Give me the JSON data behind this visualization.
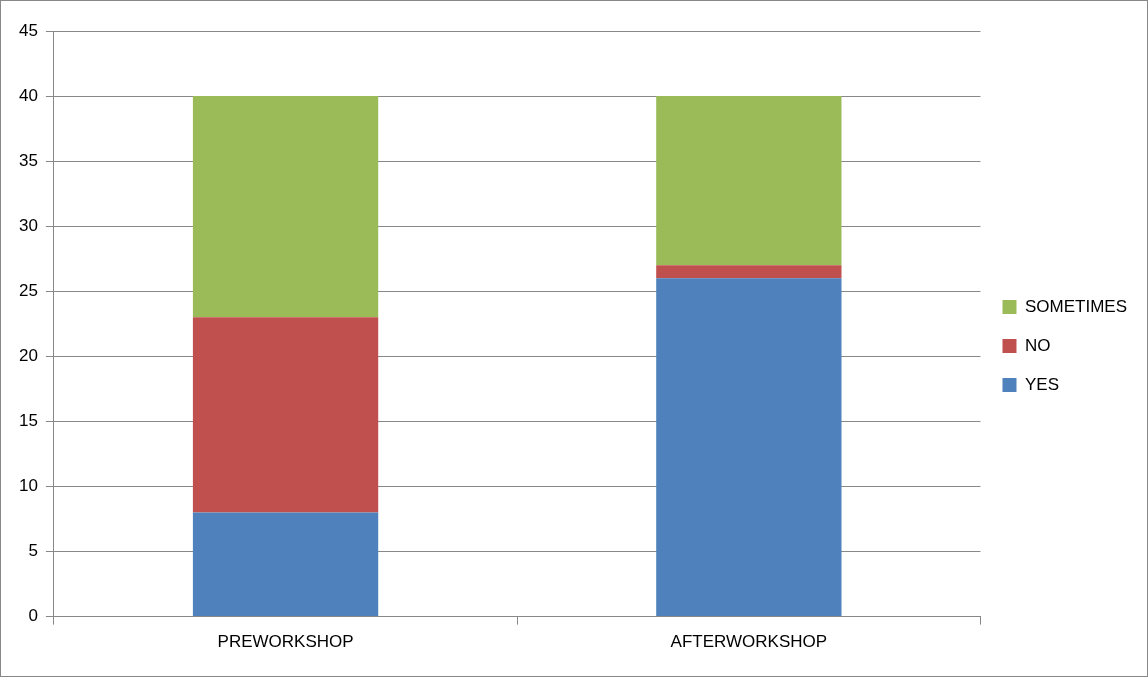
{
  "chart_data": {
    "type": "bar",
    "stacked": true,
    "categories": [
      "PREWORKSHOP",
      "AFTERWORKSHOP"
    ],
    "series": [
      {
        "name": "YES",
        "color": "#4f81bd",
        "values": [
          8,
          26
        ]
      },
      {
        "name": "NO",
        "color": "#c0504d",
        "values": [
          15,
          1
        ]
      },
      {
        "name": "SOMETIMES",
        "color": "#9bbb59",
        "values": [
          17,
          13
        ]
      }
    ],
    "ylim": [
      0,
      45
    ],
    "yticks": [
      0,
      5,
      10,
      15,
      20,
      25,
      30,
      35,
      40,
      45
    ],
    "grid": "y",
    "legend": "right"
  }
}
